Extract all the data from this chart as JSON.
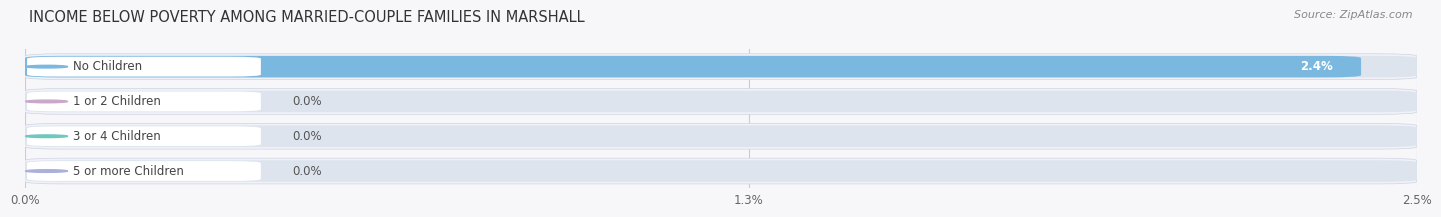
{
  "title": "INCOME BELOW POVERTY AMONG MARRIED-COUPLE FAMILIES IN MARSHALL",
  "source": "Source: ZipAtlas.com",
  "categories": [
    "No Children",
    "1 or 2 Children",
    "3 or 4 Children",
    "5 or more Children"
  ],
  "values": [
    2.4,
    0.0,
    0.0,
    0.0
  ],
  "bar_colors": [
    "#7ab8e0",
    "#c9a8c8",
    "#6ec8be",
    "#aab0dc"
  ],
  "bar_bg_color": "#dde4ee",
  "row_bg_color": "#f0f2f8",
  "xlim": [
    0,
    2.5
  ],
  "xticks": [
    0.0,
    1.3,
    2.5
  ],
  "xtick_labels": [
    "0.0%",
    "1.3%",
    "2.5%"
  ],
  "value_labels": [
    "2.4%",
    "0.0%",
    "0.0%",
    "0.0%"
  ],
  "bg_color": "#f7f7fa",
  "bar_height": 0.62,
  "title_fontsize": 10.5,
  "label_fontsize": 8.5,
  "value_fontsize": 8.5,
  "source_fontsize": 8
}
